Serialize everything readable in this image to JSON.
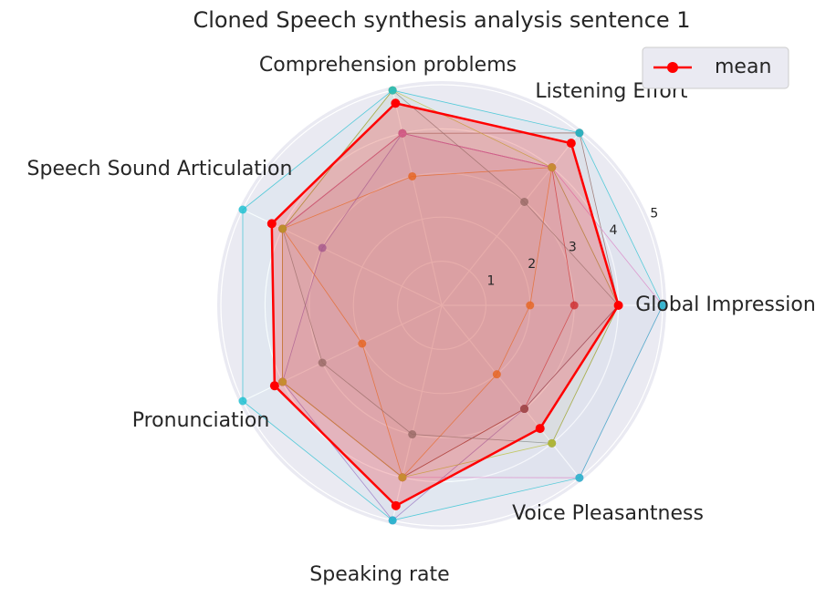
{
  "chart_data": {
    "type": "radar",
    "title": "Cloned Speech synthesis analysis sentence 1",
    "categories": [
      "Global Impression",
      "Listening Effort",
      "Comprehension problems",
      "Speech Sound Articulation",
      "Pronunciation",
      "Speaking rate",
      "Voice Pleasantness"
    ],
    "ylim": [
      0,
      5
    ],
    "yticks": [
      1,
      2,
      3,
      4,
      5
    ],
    "grid": true,
    "legend": "upper right",
    "series": [
      {
        "color": "#ff7f0e",
        "values": [
          2,
          4,
          3,
          4,
          2,
          4,
          2
        ]
      },
      {
        "color": "#d62728",
        "values": [
          3,
          4,
          4,
          4,
          4,
          4,
          3
        ]
      },
      {
        "color": "#9467bd",
        "values": [
          4,
          4,
          4,
          3,
          4,
          5,
          3
        ]
      },
      {
        "color": "#8c564b",
        "values": [
          4,
          5,
          4,
          4,
          4,
          4,
          3
        ]
      },
      {
        "color": "#e377c2",
        "values": [
          5,
          4,
          4,
          4,
          4,
          4,
          5
        ]
      },
      {
        "color": "#7f7f7f",
        "values": [
          4,
          3,
          5,
          4,
          3,
          3,
          4
        ]
      },
      {
        "color": "#bcbd22",
        "values": [
          4,
          4,
          5,
          4,
          4,
          4,
          4
        ]
      },
      {
        "color": "#17becf",
        "values": [
          5,
          5,
          5,
          5,
          5,
          5,
          5
        ]
      },
      {
        "name": "mean",
        "color": "#ff0000",
        "values": [
          4.0,
          4.7,
          4.7,
          4.27,
          4.2,
          4.66,
          3.57
        ]
      }
    ]
  }
}
